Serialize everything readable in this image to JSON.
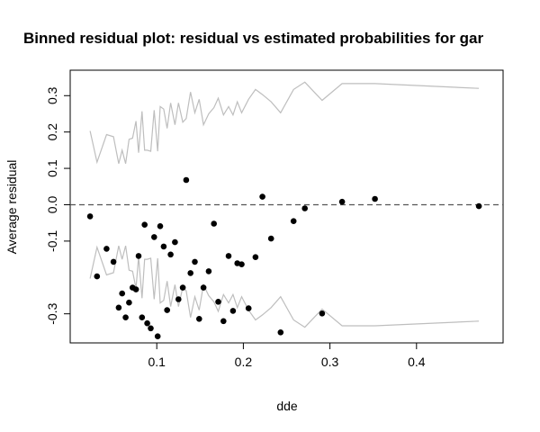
{
  "chart_data": {
    "type": "scatter",
    "title": "Binned residual plot: residual vs estimated probabilities for gar",
    "xlabel": "dde",
    "ylabel": "Average residual",
    "xlim": [
      0.0,
      0.5
    ],
    "ylim": [
      -0.38,
      0.37
    ],
    "x_ticks": [
      {
        "value": 0.1,
        "label": "0.1"
      },
      {
        "value": 0.2,
        "label": "0.2"
      },
      {
        "value": 0.3,
        "label": "0.3"
      },
      {
        "value": 0.4,
        "label": "0.4"
      }
    ],
    "y_ticks": [
      {
        "value": -0.3,
        "label": "-0.3"
      },
      {
        "value": -0.1,
        "label": "-0.1"
      },
      {
        "value": 0.0,
        "label": "0.0"
      },
      {
        "value": 0.1,
        "label": "0.1"
      },
      {
        "value": 0.2,
        "label": "0.2"
      },
      {
        "value": 0.3,
        "label": "0.3"
      }
    ],
    "reference_line": {
      "y": 0.0,
      "style": "dashed"
    },
    "points": [
      {
        "x": 0.023,
        "y": -0.032
      },
      {
        "x": 0.031,
        "y": -0.197
      },
      {
        "x": 0.042,
        "y": -0.121
      },
      {
        "x": 0.05,
        "y": -0.157
      },
      {
        "x": 0.056,
        "y": -0.283
      },
      {
        "x": 0.06,
        "y": -0.244
      },
      {
        "x": 0.064,
        "y": -0.31
      },
      {
        "x": 0.068,
        "y": -0.269
      },
      {
        "x": 0.072,
        "y": -0.228
      },
      {
        "x": 0.076,
        "y": -0.233
      },
      {
        "x": 0.079,
        "y": -0.141
      },
      {
        "x": 0.083,
        "y": -0.31
      },
      {
        "x": 0.086,
        "y": -0.055
      },
      {
        "x": 0.089,
        "y": -0.326
      },
      {
        "x": 0.093,
        "y": -0.34
      },
      {
        "x": 0.097,
        "y": -0.089
      },
      {
        "x": 0.101,
        "y": -0.362
      },
      {
        "x": 0.104,
        "y": -0.059
      },
      {
        "x": 0.108,
        "y": -0.115
      },
      {
        "x": 0.112,
        "y": -0.29
      },
      {
        "x": 0.116,
        "y": -0.137
      },
      {
        "x": 0.121,
        "y": -0.103
      },
      {
        "x": 0.125,
        "y": -0.26
      },
      {
        "x": 0.13,
        "y": -0.228
      },
      {
        "x": 0.134,
        "y": 0.068
      },
      {
        "x": 0.139,
        "y": -0.188
      },
      {
        "x": 0.144,
        "y": -0.157
      },
      {
        "x": 0.149,
        "y": -0.314
      },
      {
        "x": 0.154,
        "y": -0.228
      },
      {
        "x": 0.16,
        "y": -0.183
      },
      {
        "x": 0.166,
        "y": -0.052
      },
      {
        "x": 0.171,
        "y": -0.267
      },
      {
        "x": 0.177,
        "y": -0.32
      },
      {
        "x": 0.183,
        "y": -0.141
      },
      {
        "x": 0.188,
        "y": -0.292
      },
      {
        "x": 0.193,
        "y": -0.161
      },
      {
        "x": 0.198,
        "y": -0.164
      },
      {
        "x": 0.206,
        "y": -0.285
      },
      {
        "x": 0.214,
        "y": -0.144
      },
      {
        "x": 0.222,
        "y": 0.022
      },
      {
        "x": 0.232,
        "y": -0.093
      },
      {
        "x": 0.243,
        "y": -0.351
      },
      {
        "x": 0.258,
        "y": -0.045
      },
      {
        "x": 0.271,
        "y": -0.01
      },
      {
        "x": 0.291,
        "y": -0.299
      },
      {
        "x": 0.314,
        "y": 0.008
      },
      {
        "x": 0.352,
        "y": 0.016
      },
      {
        "x": 0.472,
        "y": -0.004
      }
    ],
    "band_x": [
      0.023,
      0.031,
      0.042,
      0.05,
      0.056,
      0.06,
      0.064,
      0.068,
      0.072,
      0.076,
      0.079,
      0.083,
      0.086,
      0.089,
      0.093,
      0.097,
      0.101,
      0.104,
      0.108,
      0.112,
      0.116,
      0.121,
      0.125,
      0.13,
      0.134,
      0.139,
      0.144,
      0.149,
      0.154,
      0.16,
      0.166,
      0.171,
      0.177,
      0.183,
      0.188,
      0.193,
      0.198,
      0.206,
      0.214,
      0.222,
      0.232,
      0.243,
      0.258,
      0.271,
      0.291,
      0.314,
      0.352,
      0.472
    ],
    "band_upper": [
      0.203,
      0.117,
      0.193,
      0.187,
      0.113,
      0.15,
      0.113,
      0.18,
      0.183,
      0.23,
      0.143,
      0.257,
      0.15,
      0.15,
      0.147,
      0.26,
      0.147,
      0.27,
      0.263,
      0.21,
      0.28,
      0.22,
      0.28,
      0.227,
      0.237,
      0.31,
      0.253,
      0.29,
      0.22,
      0.25,
      0.267,
      0.293,
      0.247,
      0.27,
      0.247,
      0.283,
      0.253,
      0.29,
      0.317,
      0.303,
      0.283,
      0.253,
      0.317,
      0.337,
      0.287,
      0.333,
      0.333,
      0.32
    ],
    "band_lower": [
      -0.203,
      -0.117,
      -0.193,
      -0.187,
      -0.113,
      -0.15,
      -0.113,
      -0.18,
      -0.183,
      -0.23,
      -0.143,
      -0.257,
      -0.15,
      -0.15,
      -0.147,
      -0.26,
      -0.147,
      -0.27,
      -0.263,
      -0.21,
      -0.28,
      -0.22,
      -0.28,
      -0.227,
      -0.237,
      -0.31,
      -0.253,
      -0.29,
      -0.22,
      -0.25,
      -0.267,
      -0.293,
      -0.247,
      -0.27,
      -0.247,
      -0.283,
      -0.253,
      -0.29,
      -0.317,
      -0.303,
      -0.283,
      -0.253,
      -0.317,
      -0.337,
      -0.287,
      -0.333,
      -0.333,
      -0.32
    ],
    "colors": {
      "points": "#000000",
      "band": "#bebebe",
      "reference": "#555555",
      "frame": "#000000"
    }
  }
}
